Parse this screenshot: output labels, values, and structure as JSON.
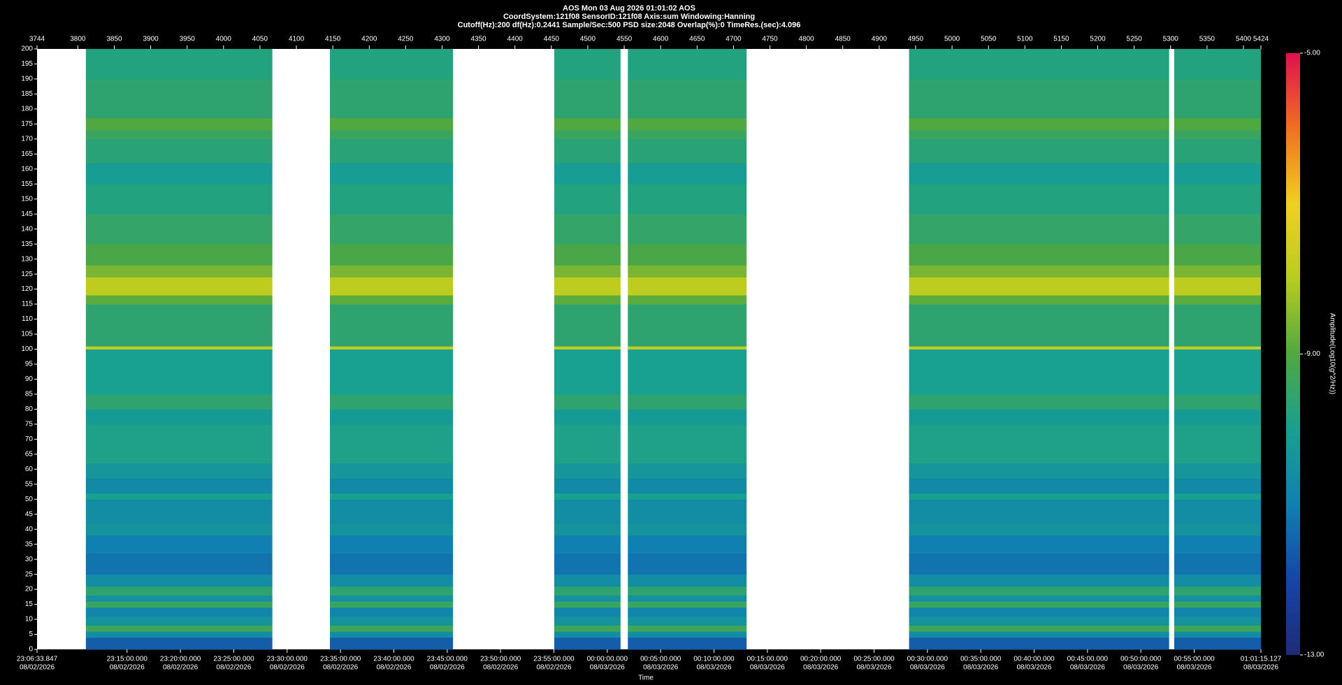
{
  "chart_data": {
    "type": "spectrogram",
    "title": "AOS  Mon 03 Aug 2026 01:01:02  AOS",
    "subtitle": "CoordSystem:121f08   SensorID:121f08    Axis:sum    Windowing:Hanning",
    "subtitle2": "Cutoff(Hz):200    df(Hz):0.2441    Sample/Sec:500    PSD size:2048    Overlap(%):0    TimeRes.(sec):4.096",
    "xlabel": "Time",
    "colorbar_label": "Amplitude(Log10(g^2/Hz))",
    "xlim": [
      3744,
      5424
    ],
    "xticks": [
      3744,
      3800,
      3850,
      3900,
      3950,
      4000,
      4050,
      4100,
      4150,
      4200,
      4250,
      4300,
      4350,
      4400,
      4450,
      4500,
      4550,
      4600,
      4650,
      4700,
      4750,
      4800,
      4850,
      4900,
      4950,
      5000,
      5050,
      5100,
      5150,
      5200,
      5250,
      5300,
      5350,
      5400,
      5424
    ],
    "x2ticks": [
      {
        "value": 3744,
        "label": "23:06:33.847"
      },
      {
        "value": 3867.57,
        "label": "23:15:00.000"
      },
      {
        "value": 3940.81,
        "label": "23:20:00.000"
      },
      {
        "value": 4014.05,
        "label": "23:25:00.000"
      },
      {
        "value": 4087.3,
        "label": "23:30:00.000"
      },
      {
        "value": 4160.54,
        "label": "23:35:00.000"
      },
      {
        "value": 4233.78,
        "label": "23:40:00.000"
      },
      {
        "value": 4307.02,
        "label": "23:45:00.000"
      },
      {
        "value": 4380.27,
        "label": "23:50:00.000"
      },
      {
        "value": 4453.51,
        "label": "23:55:00.000"
      },
      {
        "value": 4526.75,
        "label": "00:00:00.000"
      },
      {
        "value": 4599.99,
        "label": "00:05:00.000"
      },
      {
        "value": 4673.23,
        "label": "00:10:00.000"
      },
      {
        "value": 4746.48,
        "label": "00:15:00.000"
      },
      {
        "value": 4819.72,
        "label": "00:20:00.000"
      },
      {
        "value": 4892.96,
        "label": "00:25:00.000"
      },
      {
        "value": 4966.2,
        "label": "00:30:00.000"
      },
      {
        "value": 5039.45,
        "label": "00:35:00.000"
      },
      {
        "value": 5112.69,
        "label": "00:40:00.000"
      },
      {
        "value": 5185.93,
        "label": "00:45:00.000"
      },
      {
        "value": 5259.17,
        "label": "00:50:00.000"
      },
      {
        "value": 5332.42,
        "label": "00:55:00.000"
      },
      {
        "value": 5424,
        "label": "01:01:15.127"
      }
    ],
    "x2tick_dates": [
      "08/02/2026",
      "08/02/2026",
      "08/02/2026",
      "08/02/2026",
      "08/02/2026",
      "08/02/2026",
      "08/02/2026",
      "08/02/2026",
      "08/02/2026",
      "08/02/2026",
      "08/03/2026",
      "08/03/2026",
      "08/03/2026",
      "08/03/2026",
      "08/03/2026",
      "08/03/2026",
      "08/03/2026",
      "08/03/2026",
      "08/03/2026",
      "08/03/2026",
      "08/03/2026",
      "08/03/2026",
      "08/03/2026"
    ],
    "ylim": [
      0,
      200
    ],
    "yticks": [
      0,
      5,
      10,
      15,
      20,
      25,
      30,
      35,
      40,
      45,
      50,
      55,
      60,
      65,
      70,
      75,
      80,
      85,
      90,
      95,
      100,
      105,
      110,
      115,
      120,
      125,
      130,
      135,
      140,
      145,
      150,
      155,
      160,
      165,
      170,
      175,
      180,
      185,
      190,
      195,
      200
    ],
    "segments": [
      [
        3811,
        4067
      ],
      [
        4146,
        4315
      ],
      [
        4454,
        4545
      ],
      [
        4555,
        4718
      ],
      [
        4941,
        5298
      ],
      [
        5305,
        5424
      ]
    ],
    "freq_edges": [
      0,
      4,
      6,
      8,
      11,
      14,
      16,
      18,
      21,
      25,
      32,
      38,
      42,
      50,
      52,
      57,
      62,
      75,
      80,
      85,
      100,
      101,
      105,
      115,
      118,
      124,
      128,
      135,
      145,
      155,
      162,
      170,
      173,
      177,
      190,
      200
    ],
    "amplitude": [
      -11.6,
      -10.6,
      -9.3,
      -10.4,
      -10.8,
      -9.4,
      -10.5,
      -9.6,
      -10.6,
      -11.2,
      -11.0,
      -10.4,
      -10.6,
      -10.0,
      -10.7,
      -10.3,
      -9.9,
      -10.2,
      -9.6,
      -10.0,
      -7.8,
      -9.6,
      -9.6,
      -8.9,
      -7.9,
      -8.6,
      -9.1,
      -9.5,
      -9.8,
      -10.1,
      -9.7,
      -9.4,
      -9.0,
      -9.6,
      -9.8
    ],
    "clim": [
      -13,
      -5
    ],
    "cticks": [
      {
        "value": -13,
        "label": "-13.00"
      },
      {
        "value": -9,
        "label": "-9.00"
      },
      {
        "value": -5,
        "label": "-5.00"
      }
    ],
    "colormap": [
      "#202a78",
      "#1545a8",
      "#1080b0",
      "#18a090",
      "#50a840",
      "#b8cc20",
      "#f0d020",
      "#f07020",
      "#e01050"
    ]
  }
}
